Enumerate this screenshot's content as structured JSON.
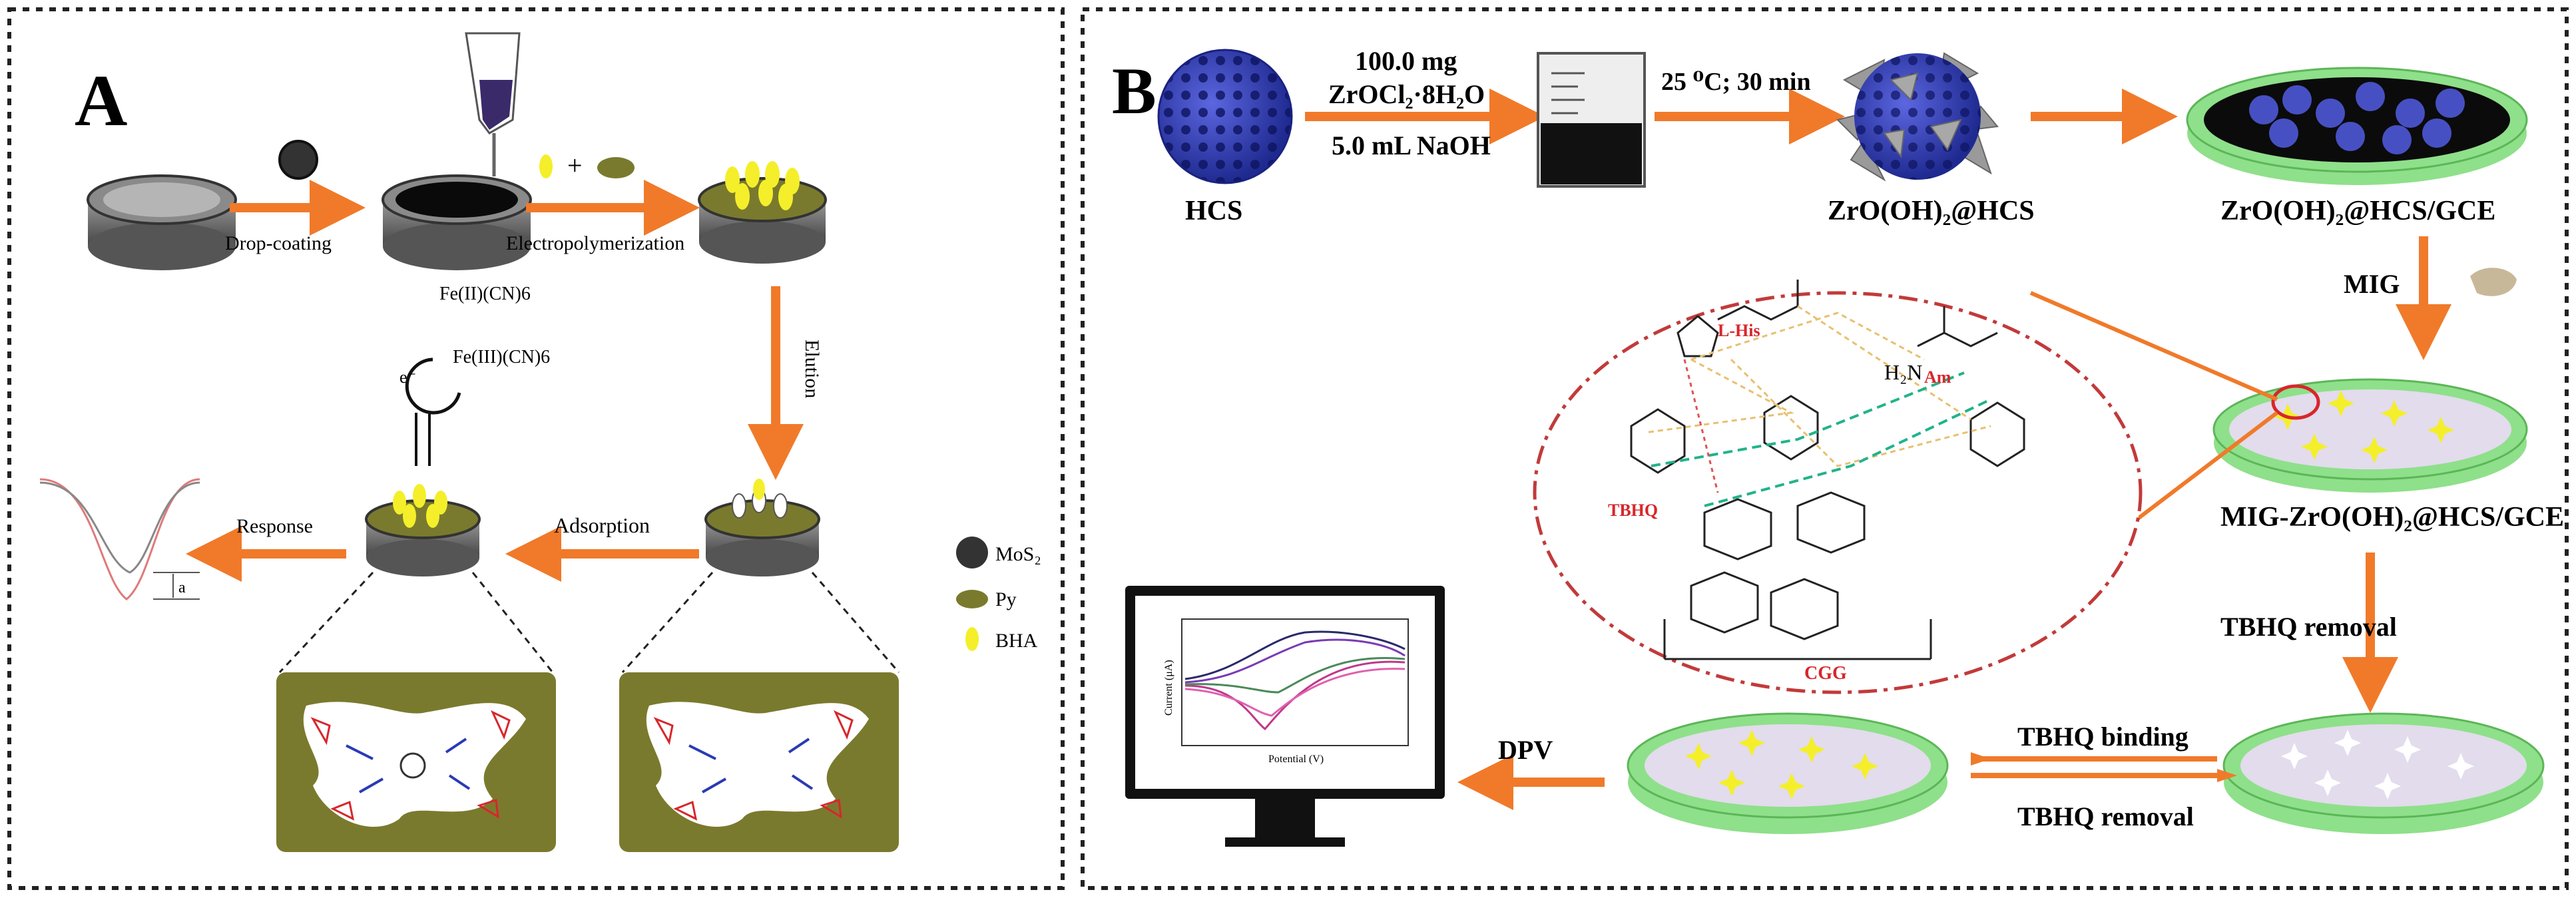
{
  "panel_a": {
    "label": "A",
    "step_drop_coating": "Drop-coating",
    "step_electropolymerization": "Electropolymerization",
    "step_elution": "Elution",
    "step_adsorption": "Adsorption",
    "step_response": "Response",
    "redox_upper": "Fe(II)(CN)6",
    "redox_lower": "Fe(III)(CN)6",
    "electron": "e⁻",
    "peak_marker": "a",
    "legend": {
      "mos2": "MoS₂",
      "py": "Py",
      "bha": "BHA"
    }
  },
  "panel_b": {
    "label": "B",
    "hcs": "HCS",
    "reagent_mass": "100.0 mg",
    "reagent_zr": "ZrOCl₂·8H₂O",
    "reagent_naoh": "5.0 mL NaOH",
    "condition": "25 ⁰C;  30 min",
    "composite": "ZrO(OH)₂@HCS",
    "electrode": "ZrO(OH)₂@HCS/GCE",
    "mig": "MIG",
    "mig_electrode": "MIG-ZrO(OH)₂@HCS/GCE",
    "removal": "TBHQ removal",
    "binding": "TBHQ binding",
    "removal2": "TBHQ removal",
    "dpv": "DPV",
    "mol_lhis": "L-His",
    "mol_am": "Am",
    "mol_h2n": "H₂N",
    "mol_tbhq": "TBHQ",
    "mol_cgg": "CGG",
    "plot_ylabel": "Current (μA)",
    "plot_xlabel": "Potential (V)"
  },
  "colors": {
    "arrow": "#f07a2a",
    "olive": "#7a7a2e",
    "yellow": "#f4ef2a",
    "blue_sphere": "#2f3bb5",
    "green_rim": "#8fe08a",
    "red_mark": "#d8262b"
  }
}
